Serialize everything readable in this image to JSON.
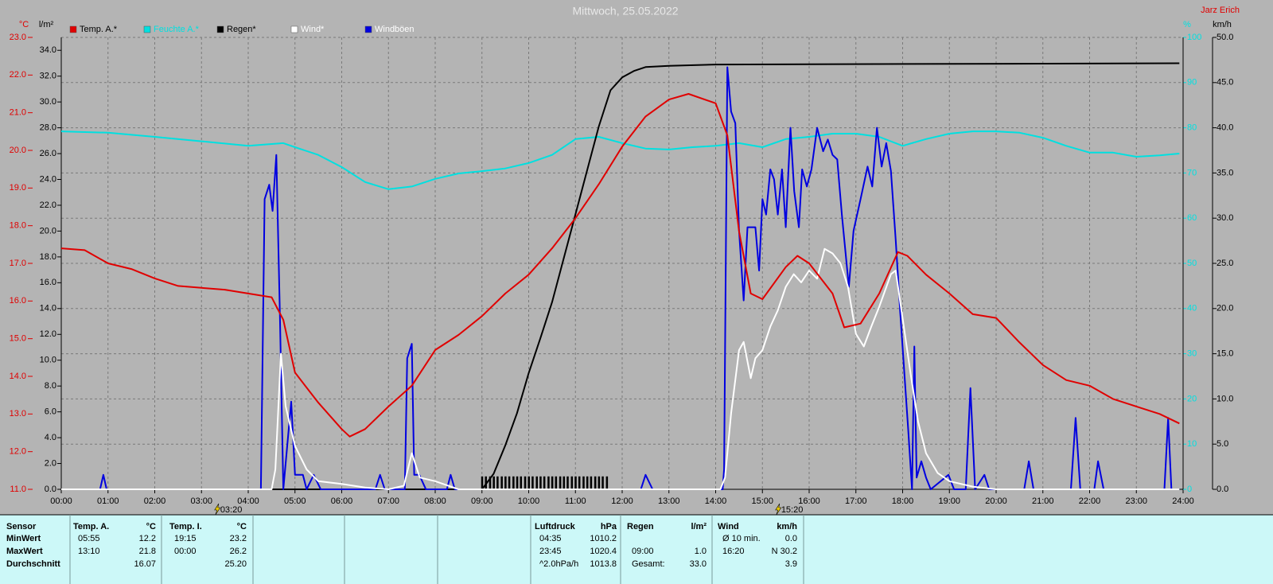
{
  "chart_data": {
    "type": "line",
    "title": "Mittwoch, 25.05.2022",
    "author": "Jarz Erich",
    "y_label": "°C",
    "y2_label": "l/m²",
    "y3_label": "%",
    "y4_label": "km/h",
    "grid": true,
    "xlim": [
      0,
      24
    ],
    "xticks": [
      {
        "value": 0,
        "label": "00:00"
      },
      {
        "value": 1,
        "label": "01:00"
      },
      {
        "value": 2,
        "label": "02:00"
      },
      {
        "value": 3,
        "label": "03:00"
      },
      {
        "value": 4,
        "label": "04:00"
      },
      {
        "value": 5,
        "label": "05:00"
      },
      {
        "value": 6,
        "label": "06:00"
      },
      {
        "value": 7,
        "label": "07:00"
      },
      {
        "value": 8,
        "label": "08:00"
      },
      {
        "value": 9,
        "label": "09:00"
      },
      {
        "value": 10,
        "label": "10:00"
      },
      {
        "value": 11,
        "label": "11:00"
      },
      {
        "value": 12,
        "label": "12:00"
      },
      {
        "value": 13,
        "label": "13:00"
      },
      {
        "value": 14,
        "label": "14:00"
      },
      {
        "value": 15,
        "label": "15:00"
      },
      {
        "value": 16,
        "label": "16:00"
      },
      {
        "value": 17,
        "label": "17:00"
      },
      {
        "value": 18,
        "label": "18:00"
      },
      {
        "value": 19,
        "label": "19:00"
      },
      {
        "value": 20,
        "label": "20:00"
      },
      {
        "value": 21,
        "label": "21:00"
      },
      {
        "value": 22,
        "label": "22:00"
      },
      {
        "value": 23,
        "label": "23:00"
      },
      {
        "value": 24,
        "label": "24:00"
      }
    ],
    "ylim": [
      11,
      23
    ],
    "yticks": [
      {
        "value": 11,
        "label": "11.0"
      },
      {
        "value": 12,
        "label": "12.0"
      },
      {
        "value": 13,
        "label": "13.0"
      },
      {
        "value": 14,
        "label": "14.0"
      },
      {
        "value": 15,
        "label": "15.0"
      },
      {
        "value": 16,
        "label": "16.0"
      },
      {
        "value": 17,
        "label": "17.0"
      },
      {
        "value": 18,
        "label": "18.0"
      },
      {
        "value": 19,
        "label": "19.0"
      },
      {
        "value": 20,
        "label": "20.0"
      },
      {
        "value": 21,
        "label": "21.0"
      },
      {
        "value": 22,
        "label": "22.0"
      },
      {
        "value": 23,
        "label": "23.0"
      }
    ],
    "y2lim": [
      0,
      35
    ],
    "y2ticks": [
      {
        "value": 0,
        "label": "0.0"
      },
      {
        "value": 2,
        "label": "2.0"
      },
      {
        "value": 4,
        "label": "4.0"
      },
      {
        "value": 6,
        "label": "6.0"
      },
      {
        "value": 8,
        "label": "8.0"
      },
      {
        "value": 10,
        "label": "10.0"
      },
      {
        "value": 12,
        "label": "12.0"
      },
      {
        "value": 14,
        "label": "14.0"
      },
      {
        "value": 16,
        "label": "16.0"
      },
      {
        "value": 18,
        "label": "18.0"
      },
      {
        "value": 20,
        "label": "20.0"
      },
      {
        "value": 22,
        "label": "22.0"
      },
      {
        "value": 24,
        "label": "24.0"
      },
      {
        "value": 26,
        "label": "26.0"
      },
      {
        "value": 28,
        "label": "28.0"
      },
      {
        "value": 30,
        "label": "30.0"
      },
      {
        "value": 32,
        "label": "32.0"
      },
      {
        "value": 34,
        "label": "34.0"
      }
    ],
    "y3lim": [
      0,
      100
    ],
    "y3ticks": [
      0,
      10,
      20,
      30,
      40,
      50,
      60,
      70,
      80,
      90,
      100
    ],
    "y4lim": [
      0,
      50
    ],
    "y4ticks": [
      {
        "value": 0,
        "label": "0.0"
      },
      {
        "value": 5,
        "label": "5.0"
      },
      {
        "value": 10,
        "label": "10.0"
      },
      {
        "value": 15,
        "label": "15.0"
      },
      {
        "value": 20,
        "label": "20.0"
      },
      {
        "value": 25,
        "label": "25.0"
      },
      {
        "value": 30,
        "label": "30.0"
      },
      {
        "value": 35,
        "label": "35.0"
      },
      {
        "value": 40,
        "label": "40.0"
      },
      {
        "value": 45,
        "label": "45.0"
      },
      {
        "value": 50,
        "label": "50.0"
      }
    ],
    "series": [
      {
        "name": "Temp. A.*",
        "color": "#e00000",
        "x": [
          0,
          0.5,
          1,
          1.5,
          2,
          2.5,
          3,
          3.5,
          4,
          4.5,
          4.75,
          5,
          5.5,
          6,
          6.17,
          6.5,
          7,
          7.5,
          8,
          8.5,
          9,
          9.5,
          10,
          10.5,
          11,
          11.5,
          12,
          12.5,
          13,
          13.42,
          14,
          14.25,
          14.5,
          14.75,
          15,
          15.5,
          15.75,
          16,
          16.5,
          16.75,
          17.1,
          17.5,
          17.9,
          18.1,
          18.5,
          19,
          19.5,
          20,
          20.5,
          21,
          21.5,
          22,
          22.5,
          23,
          23.5,
          23.92
        ],
        "values": [
          17.4,
          17.35,
          17.0,
          16.85,
          16.6,
          16.4,
          16.35,
          16.3,
          16.2,
          16.1,
          15.5,
          14.1,
          13.3,
          12.6,
          12.4,
          12.6,
          13.2,
          13.75,
          14.7,
          15.1,
          15.6,
          16.2,
          16.7,
          17.4,
          18.2,
          19.1,
          20.1,
          20.9,
          21.35,
          21.5,
          21.25,
          20.4,
          17.85,
          16.2,
          16.05,
          16.9,
          17.2,
          17.0,
          16.2,
          15.3,
          15.4,
          16.2,
          17.3,
          17.2,
          16.7,
          16.2,
          15.65,
          15.55,
          14.9,
          14.3,
          13.9,
          13.75,
          13.4,
          13.2,
          13.0,
          12.75
        ]
      },
      {
        "name": "Feuchte A.*",
        "color": "#00e0e0",
        "axis": "y3",
        "x": [
          0,
          1,
          2,
          3,
          4,
          4.75,
          5,
          5.5,
          6,
          6.5,
          7,
          7.5,
          8,
          8.5,
          9,
          9.5,
          10,
          10.5,
          11,
          11.5,
          12,
          12.5,
          13,
          13.5,
          14,
          14.5,
          15,
          15.5,
          16,
          16.5,
          17,
          17.5,
          18,
          18.5,
          19,
          19.5,
          20,
          20.5,
          21,
          21.5,
          22,
          22.5,
          23,
          23.5,
          23.92
        ],
        "values": [
          79.2,
          78.9,
          78,
          77,
          76,
          76.6,
          75.7,
          74,
          71.3,
          68,
          66.4,
          67,
          68.7,
          69.9,
          70.4,
          71,
          72.2,
          74,
          77.5,
          78,
          76.6,
          75.4,
          75.2,
          75.7,
          76,
          76.6,
          75.7,
          77.5,
          78,
          78.7,
          78.7,
          78,
          76,
          77.5,
          78.7,
          79.2,
          79.2,
          78.9,
          77.8,
          76,
          74.5,
          74.5,
          73.6,
          73.9,
          74.3
        ]
      },
      {
        "name": "Regen*",
        "color": "#000000",
        "axis": "y2",
        "x": [
          0,
          9,
          9.25,
          9.5,
          9.75,
          10,
          10.25,
          10.5,
          10.75,
          11,
          11.25,
          11.5,
          11.75,
          12,
          12.25,
          12.5,
          13,
          14,
          23.92
        ],
        "values": [
          0,
          0,
          1.2,
          3.4,
          5.9,
          9,
          11.7,
          14.5,
          17.9,
          21.3,
          24.7,
          28.1,
          30.9,
          31.9,
          32.4,
          32.7,
          32.8,
          32.9,
          33.0
        ]
      },
      {
        "name": "Wind*",
        "color": "#ffffff",
        "axis": "y4",
        "x": [
          0,
          4.5,
          4.58,
          4.7,
          4.8,
          5,
          5.25,
          5.5,
          6,
          6.5,
          7,
          7.33,
          7.5,
          7.67,
          8,
          8.5,
          14.1,
          14.2,
          14.33,
          14.5,
          14.6,
          14.75,
          14.85,
          15,
          15.17,
          15.33,
          15.5,
          15.67,
          15.83,
          16,
          16.17,
          16.33,
          16.5,
          16.67,
          16.83,
          17,
          17.17,
          17.33,
          17.5,
          17.75,
          17.85,
          18,
          18.17,
          18.33,
          18.5,
          18.75,
          19,
          19.5,
          20,
          23.92
        ],
        "values": [
          0,
          0,
          2.2,
          15.0,
          9.2,
          4.8,
          2.2,
          0.9,
          0.6,
          0.2,
          0,
          0.4,
          4,
          1.3,
          0.9,
          0,
          0,
          1.3,
          8.4,
          15.4,
          16.3,
          12.3,
          14.5,
          15.4,
          18,
          19.8,
          22.4,
          23.8,
          22.9,
          24.2,
          23.3,
          26.6,
          26.1,
          25,
          22.4,
          17.2,
          15.8,
          18,
          20.2,
          23.8,
          24.2,
          18.9,
          12.8,
          7.5,
          4,
          1.8,
          0.9,
          0.3,
          0,
          0
        ]
      },
      {
        "name": "Windböen",
        "color": "#0000e0",
        "axis": "y4",
        "x": [
          0,
          0.83,
          0.9,
          0.97,
          4.27,
          4.35,
          4.45,
          4.52,
          4.6,
          4.68,
          4.75,
          4.92,
          5,
          5.17,
          5.25,
          5.4,
          5.55,
          6.72,
          6.82,
          6.92,
          7.35,
          7.4,
          7.5,
          7.55,
          7.66,
          7.8,
          8.25,
          8.33,
          8.42,
          12.4,
          12.5,
          12.65,
          14.15,
          14.18,
          14.25,
          14.33,
          14.42,
          14.5,
          14.6,
          14.68,
          14.85,
          14.93,
          15,
          15.08,
          15.17,
          15.25,
          15.33,
          15.42,
          15.5,
          15.6,
          15.68,
          15.78,
          15.85,
          15.95,
          16.05,
          16.17,
          16.3,
          16.4,
          16.5,
          16.6,
          16.7,
          16.85,
          16.95,
          17.1,
          17.25,
          17.35,
          17.45,
          17.55,
          17.65,
          17.75,
          17.85,
          17.95,
          18.05,
          18.12,
          18.2,
          18.25,
          18.3,
          18.4,
          18.5,
          18.6,
          18.98,
          19.1,
          19.35,
          19.45,
          19.55,
          19.75,
          19.85,
          20.6,
          20.7,
          20.8,
          21.6,
          21.7,
          21.8,
          22.1,
          22.18,
          22.3,
          23.6,
          23.68,
          23.75,
          23.92
        ],
        "values": [
          0,
          0,
          1.6,
          0,
          0,
          32.1,
          33.7,
          30.8,
          37,
          18.9,
          0,
          9.7,
          1.6,
          1.6,
          0,
          1.6,
          0,
          0,
          1.6,
          0,
          0,
          14.5,
          16.1,
          1.6,
          1.6,
          0,
          0,
          1.6,
          0,
          0,
          1.6,
          0,
          0,
          2.2,
          46.7,
          41.8,
          40.5,
          28.6,
          20.9,
          29,
          29,
          24.2,
          32.1,
          30.4,
          35.4,
          34.3,
          30.4,
          35.4,
          29,
          40,
          33,
          29,
          35.4,
          33.5,
          35.4,
          40,
          37.4,
          38.7,
          37,
          36.5,
          30.4,
          22.4,
          28.6,
          32.1,
          35.7,
          33.5,
          40,
          35.7,
          38.3,
          35.2,
          27.7,
          19.4,
          11.9,
          6.6,
          0,
          15.8,
          1.3,
          3.1,
          1.3,
          0,
          1.6,
          0,
          0,
          11.2,
          0,
          1.6,
          0,
          0,
          3.1,
          0,
          0,
          7.9,
          0,
          0,
          3.1,
          0,
          0,
          7.9,
          0,
          0
        ]
      }
    ],
    "rain_bars": {
      "color": "#000000",
      "axis": "y2",
      "x": [
        9,
        9.08,
        9.17,
        9.25,
        9.33,
        9.42,
        9.5,
        9.58,
        9.67,
        9.75,
        9.83,
        9.92,
        10,
        10.08,
        10.17,
        10.25,
        10.33,
        10.42,
        10.5,
        10.58,
        10.67,
        10.75,
        10.83,
        10.92,
        11,
        11.08,
        11.17,
        11.25,
        11.33,
        11.42,
        11.5,
        11.58,
        11.67
      ],
      "values": [
        1,
        1,
        1,
        1,
        1,
        1,
        1,
        1,
        1,
        1,
        1,
        1,
        1,
        1,
        1,
        1,
        1,
        1,
        1,
        1,
        1,
        1,
        1,
        1,
        1,
        1,
        1,
        1,
        1,
        1,
        1,
        1,
        1
      ]
    },
    "annotations": [
      {
        "x": 3.333,
        "label": "03:20"
      },
      {
        "x": 15.333,
        "label": "15:20"
      }
    ]
  },
  "stats": {
    "columns": [
      {
        "rows": [
          "Sensor",
          "MinWert",
          "MaxWert",
          "Durchschnitt"
        ]
      },
      {
        "header": "Temp. A.",
        "unit": "°C",
        "rows": [
          [
            "05:55",
            "12.2"
          ],
          [
            "13:10",
            "21.8"
          ],
          [
            null,
            "16.07"
          ]
        ]
      },
      {
        "header": "Temp. I.",
        "unit": "°C",
        "rows": [
          [
            "19:15",
            "23.2"
          ],
          [
            "00:00",
            "26.2"
          ],
          [
            null,
            "25.20"
          ]
        ]
      },
      {
        "header": "Luftdruck",
        "unit": "hPa",
        "rows": [
          [
            "04:35",
            "1010.2"
          ],
          [
            "23:45",
            "1020.4"
          ],
          [
            "^2.0hPa/h",
            "1013.8"
          ]
        ]
      },
      {
        "header": "Regen",
        "unit": "l/m²",
        "rows": [
          null,
          [
            "09:00",
            "1.0"
          ],
          [
            "Gesamt:",
            "33.0"
          ]
        ]
      },
      {
        "header": "Wind",
        "unit": "km/h",
        "rows": [
          [
            "Ø 10 min.",
            "0.0"
          ],
          [
            "16:20",
            "N 30.2"
          ],
          [
            null,
            "3.9"
          ]
        ]
      }
    ]
  }
}
